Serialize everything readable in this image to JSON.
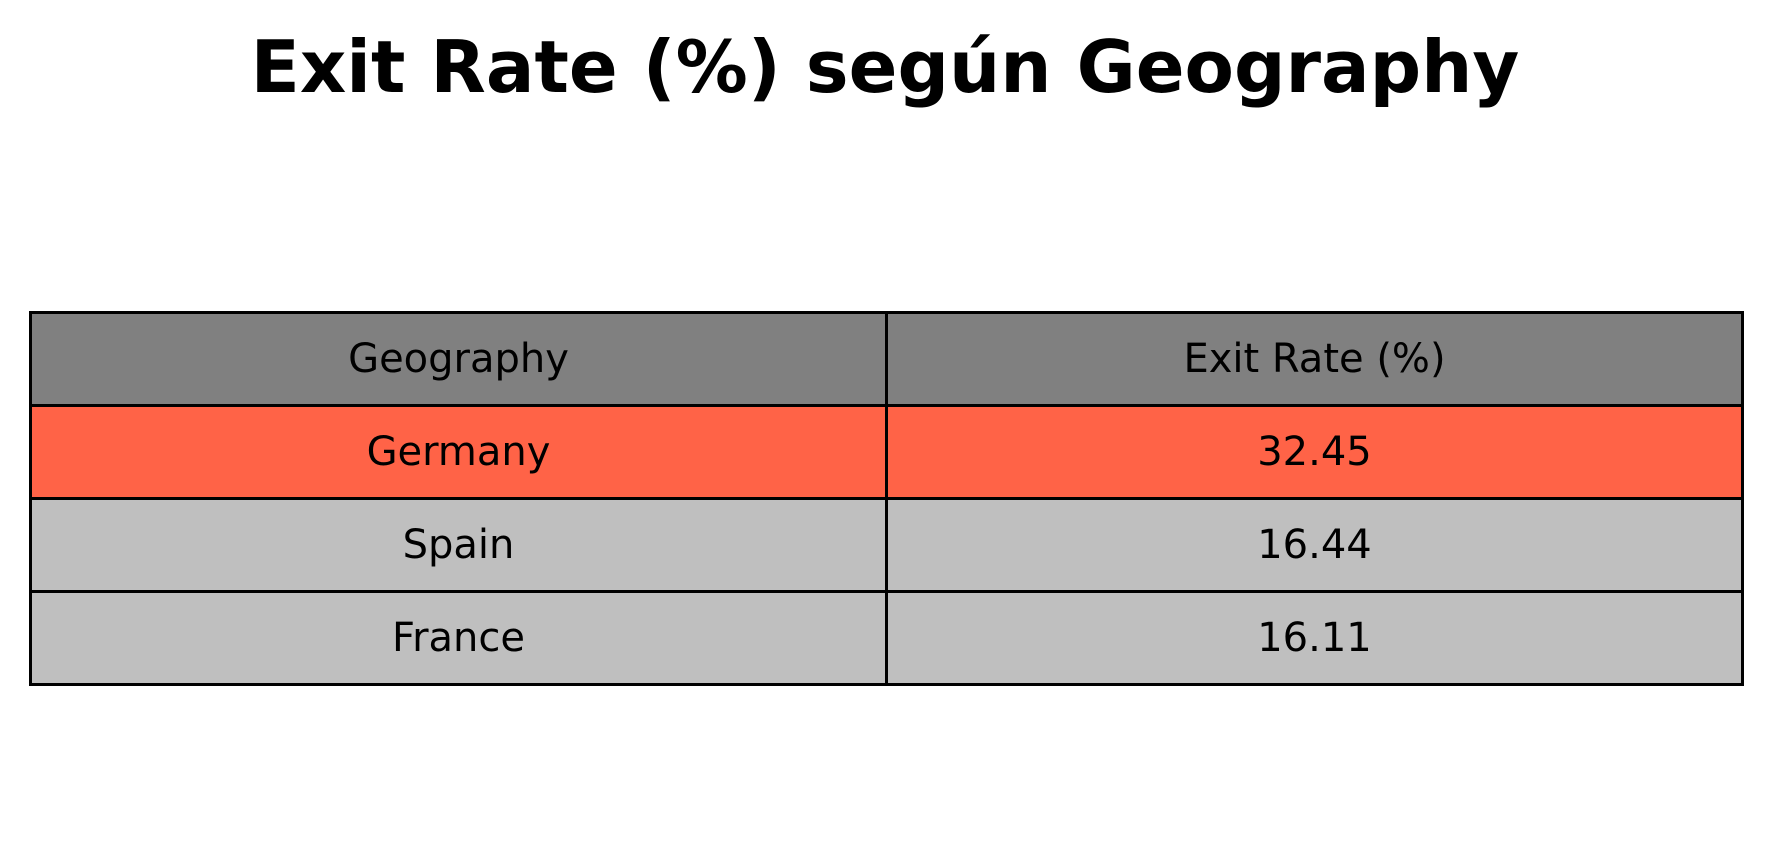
{
  "chart_data": {
    "type": "table",
    "title": "Exit Rate (%) según Geography",
    "columns": [
      "Geography",
      "Exit Rate (%)"
    ],
    "rows": [
      {
        "geography": "Germany",
        "exit_rate": "32.45",
        "highlight": true
      },
      {
        "geography": "Spain",
        "exit_rate": "16.44",
        "highlight": false
      },
      {
        "geography": "France",
        "exit_rate": "16.11",
        "highlight": false
      }
    ],
    "colors": {
      "header_bg": "#808080",
      "highlight_bg": "#ff6347",
      "row_bg": "#bfbfbf",
      "border": "#000000",
      "text": "#000000"
    }
  }
}
